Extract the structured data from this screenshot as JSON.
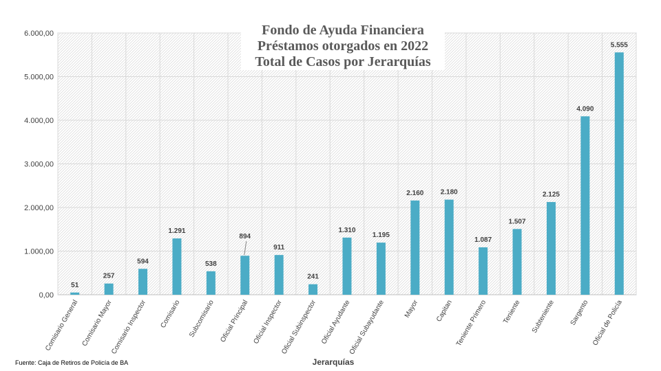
{
  "chart_data": {
    "type": "bar",
    "title": [
      "Fondo de Ayuda Financiera",
      "Préstamos otorgados en 2022",
      "Total de Casos por Jerarquías"
    ],
    "xlabel": "Jerarquías",
    "ylabel": "",
    "ylim": [
      0,
      6000
    ],
    "yticks": [
      0,
      1000,
      2000,
      3000,
      4000,
      5000,
      6000
    ],
    "ytick_labels": [
      "0,00",
      "1.000,00",
      "2.000,00",
      "3.000,00",
      "4.000,00",
      "5.000,00",
      "6.000,00"
    ],
    "categories": [
      "Comisario General",
      "Comisario Mayor",
      "Comisario Inspector",
      "Comisario",
      "Subcomisario",
      "Oficial Principal",
      "Oficial Inspector",
      "Oficial Subinspector",
      "Oficial Ayudante",
      "Oficial Subayudante",
      "Mayor",
      "Capitan",
      "Teniente Primero",
      "Teniente",
      "Subteniente",
      "Sargento",
      "Oficial de Policía"
    ],
    "values": [
      51,
      257,
      594,
      1291,
      538,
      894,
      911,
      241,
      1310,
      1195,
      2160,
      2180,
      1087,
      1507,
      2125,
      4090,
      5555
    ],
    "value_labels": [
      "51",
      "257",
      "594",
      "1.291",
      "538",
      "894",
      "911",
      "241",
      "1.310",
      "1.195",
      "2.160",
      "2.180",
      "1.087",
      "1.507",
      "2.125",
      "4.090",
      "5.555"
    ],
    "grid": true,
    "legend": "none",
    "bar_color": "#4bacc6"
  },
  "footer": {
    "source": "Fuente: Caja de Retiros de Policía de BA"
  }
}
